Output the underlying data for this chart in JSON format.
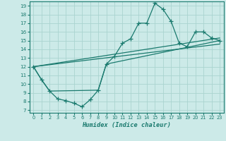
{
  "xlabel": "Humidex (Indice chaleur)",
  "xlim": [
    -0.5,
    23.5
  ],
  "ylim": [
    6.7,
    19.5
  ],
  "xticks": [
    0,
    1,
    2,
    3,
    4,
    5,
    6,
    7,
    8,
    9,
    10,
    11,
    12,
    13,
    14,
    15,
    16,
    17,
    18,
    19,
    20,
    21,
    22,
    23
  ],
  "yticks": [
    7,
    8,
    9,
    10,
    11,
    12,
    13,
    14,
    15,
    16,
    17,
    18,
    19
  ],
  "bg_color": "#cceae8",
  "line_color": "#1a7a6e",
  "grid_color": "#aad4d0",
  "line1_x": [
    0,
    1,
    2,
    3,
    4,
    5,
    6,
    7,
    8,
    9,
    10,
    11,
    12,
    13,
    14,
    15,
    16,
    17,
    18,
    19,
    20,
    21,
    22,
    23
  ],
  "line1_y": [
    12,
    10.5,
    9.2,
    8.3,
    8.1,
    7.8,
    7.4,
    8.2,
    9.3,
    12.3,
    13.2,
    14.7,
    15.2,
    17.0,
    17.0,
    19.3,
    18.6,
    17.2,
    14.7,
    14.3,
    16.0,
    16.0,
    15.3,
    15.0
  ],
  "line2_x": [
    0,
    1,
    2,
    8,
    9,
    23
  ],
  "line2_y": [
    12,
    10.5,
    9.2,
    9.3,
    12.3,
    15.0
  ],
  "line3_x": [
    0,
    23
  ],
  "line3_y": [
    12,
    15.3
  ],
  "line4_x": [
    0,
    23
  ],
  "line4_y": [
    12,
    14.6
  ]
}
